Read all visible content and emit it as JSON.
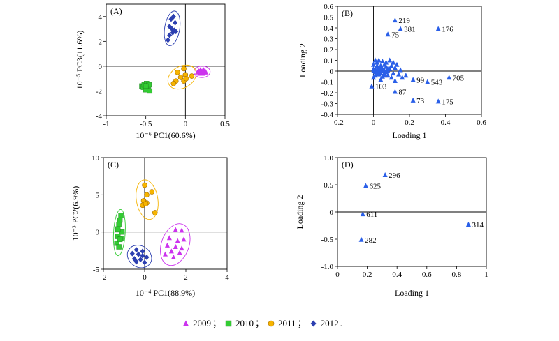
{
  "legend": {
    "entries": [
      {
        "label": "2009",
        "color": "#cc33ee",
        "marker": "triangle"
      },
      {
        "label": "2010",
        "color": "#33cc33",
        "marker": "square"
      },
      {
        "label": "2011",
        "color": "#f6b400",
        "marker": "circle"
      },
      {
        "label": "2012",
        "color": "#2c3fb0",
        "marker": "diamond"
      }
    ],
    "separator": "；",
    "terminator": "."
  },
  "chart_data": [
    {
      "panel": "(A)",
      "type": "scatter",
      "xlabel": "10⁻⁶ PC1(60.6%)",
      "ylabel": "10⁻⁵ PC3(11.6%)",
      "xlim": [
        -1,
        0.5
      ],
      "ylim": [
        -4,
        5
      ],
      "xticks": [
        -1,
        -0.5,
        0,
        0.5
      ],
      "yticks": [
        -4,
        -2,
        0,
        2,
        4
      ],
      "grid": "zero-lines",
      "series": [
        {
          "name": "2009",
          "ellipse": true,
          "points": [
            [
              0.15,
              -0.5
            ],
            [
              0.17,
              -0.4
            ],
            [
              0.18,
              -0.6
            ],
            [
              0.19,
              -0.3
            ],
            [
              0.2,
              -0.5
            ],
            [
              0.21,
              -0.4
            ],
            [
              0.22,
              -0.6
            ],
            [
              0.23,
              -0.3
            ],
            [
              0.24,
              -0.5
            ],
            [
              0.25,
              -0.4
            ],
            [
              0.26,
              -0.5
            ],
            [
              0.22,
              -0.45
            ]
          ]
        },
        {
          "name": "2010",
          "ellipse": false,
          "points": [
            [
              -0.55,
              -1.6
            ],
            [
              -0.53,
              -1.7
            ],
            [
              -0.52,
              -1.5
            ],
            [
              -0.5,
              -1.9
            ],
            [
              -0.49,
              -1.4
            ],
            [
              -0.48,
              -1.8
            ],
            [
              -0.47,
              -1.6
            ],
            [
              -0.45,
              -2.0
            ],
            [
              -0.46,
              -1.5
            ],
            [
              -0.5,
              -1.6
            ]
          ]
        },
        {
          "name": "2011",
          "ellipse": true,
          "points": [
            [
              -0.02,
              -0.2
            ],
            [
              -0.1,
              -0.5
            ],
            [
              0.0,
              -0.7
            ],
            [
              -0.12,
              -1.2
            ],
            [
              -0.02,
              -1.2
            ],
            [
              -0.15,
              -1.4
            ],
            [
              0.08,
              -0.8
            ],
            [
              -0.06,
              -0.9
            ],
            [
              0.01,
              -1.0
            ]
          ]
        },
        {
          "name": "2012",
          "ellipse": true,
          "points": [
            [
              -0.15,
              4.0
            ],
            [
              -0.18,
              3.8
            ],
            [
              -0.13,
              3.5
            ],
            [
              -0.2,
              3.2
            ],
            [
              -0.17,
              3.0
            ],
            [
              -0.14,
              2.9
            ],
            [
              -0.2,
              2.5
            ],
            [
              -0.16,
              2.7
            ],
            [
              -0.22,
              2.1
            ],
            [
              -0.12,
              2.8
            ]
          ]
        }
      ]
    },
    {
      "panel": "(B)",
      "type": "scatter",
      "xlabel": "Loading 1",
      "ylabel": "Loading 2",
      "xlim": [
        -0.2,
        0.6
      ],
      "ylim": [
        -0.4,
        0.6
      ],
      "xticks": [
        -0.2,
        0,
        0.2,
        0.4,
        0.6
      ],
      "yticks": [
        -0.4,
        -0.3,
        -0.2,
        -0.1,
        0,
        0.1,
        0.2,
        0.3,
        0.4,
        0.5,
        0.6
      ],
      "grid": "zero-lines",
      "labeled_points": [
        {
          "label": "219",
          "x": 0.12,
          "y": 0.47
        },
        {
          "label": "381",
          "x": 0.15,
          "y": 0.39
        },
        {
          "label": "75",
          "x": 0.08,
          "y": 0.34
        },
        {
          "label": "176",
          "x": 0.36,
          "y": 0.39
        },
        {
          "label": "99",
          "x": 0.22,
          "y": -0.08
        },
        {
          "label": "543",
          "x": 0.3,
          "y": -0.1
        },
        {
          "label": "705",
          "x": 0.42,
          "y": -0.06
        },
        {
          "label": "103",
          "x": -0.01,
          "y": -0.14
        },
        {
          "label": "87",
          "x": 0.12,
          "y": -0.19
        },
        {
          "label": "73",
          "x": 0.22,
          "y": -0.27
        },
        {
          "label": "175",
          "x": 0.36,
          "y": -0.28
        }
      ],
      "cluster_points": [
        [
          0.0,
          0.0
        ],
        [
          0.01,
          0.02
        ],
        [
          0.02,
          -0.01
        ],
        [
          0.03,
          0.03
        ],
        [
          0.04,
          0.0
        ],
        [
          0.05,
          0.02
        ],
        [
          0.06,
          -0.02
        ],
        [
          0.02,
          0.05
        ],
        [
          0.01,
          -0.04
        ],
        [
          0.03,
          -0.03
        ],
        [
          0.0,
          0.06
        ],
        [
          0.04,
          0.05
        ],
        [
          0.07,
          0.04
        ],
        [
          0.08,
          0.0
        ],
        [
          0.06,
          0.06
        ],
        [
          0.09,
          0.02
        ],
        [
          0.05,
          -0.05
        ],
        [
          0.02,
          0.08
        ],
        [
          0.0,
          -0.06
        ],
        [
          0.08,
          -0.04
        ],
        [
          0.1,
          0.05
        ],
        [
          0.03,
          0.1
        ],
        [
          0.07,
          0.08
        ],
        [
          0.11,
          -0.02
        ],
        [
          0.12,
          0.03
        ],
        [
          0.09,
          0.1
        ],
        [
          0.13,
          0.06
        ],
        [
          0.05,
          0.09
        ],
        [
          0.01,
          0.1
        ],
        [
          0.04,
          -0.08
        ],
        [
          0.1,
          -0.06
        ],
        [
          0.14,
          -0.03
        ],
        [
          0.15,
          0.01
        ],
        [
          0.16,
          -0.06
        ],
        [
          0.12,
          -0.09
        ],
        [
          0.18,
          -0.04
        ],
        [
          0.02,
          0.01
        ],
        [
          0.03,
          0.01
        ],
        [
          0.04,
          0.02
        ],
        [
          0.05,
          0.0
        ],
        [
          0.01,
          -0.01
        ],
        [
          0.06,
          0.01
        ],
        [
          0.02,
          -0.02
        ],
        [
          0.07,
          -0.01
        ],
        [
          0.0,
          0.02
        ],
        [
          0.03,
          -0.01
        ],
        [
          0.04,
          -0.02
        ],
        [
          0.08,
          0.02
        ],
        [
          0.06,
          -0.04
        ],
        [
          0.11,
          0.08
        ]
      ]
    },
    {
      "panel": "(C)",
      "type": "scatter",
      "xlabel": "10⁻⁴ PC1(88.9%)",
      "ylabel": "10⁻³ PC2(6.9%)",
      "xlim": [
        -2,
        4
      ],
      "ylim": [
        -5,
        10
      ],
      "xticks": [
        -2,
        0,
        2,
        4
      ],
      "yticks": [
        -5,
        0,
        5,
        10
      ],
      "grid": "zero-lines",
      "series": [
        {
          "name": "2009",
          "ellipse": true,
          "points": [
            [
              1.5,
              0.3
            ],
            [
              1.8,
              0.2
            ],
            [
              1.2,
              -0.8
            ],
            [
              1.6,
              -1.2
            ],
            [
              1.9,
              -1.0
            ],
            [
              1.1,
              -1.8
            ],
            [
              1.5,
              -2.0
            ],
            [
              1.8,
              -2.2
            ],
            [
              1.3,
              -2.6
            ],
            [
              1.7,
              -2.8
            ],
            [
              1.0,
              -3.0
            ],
            [
              1.4,
              -3.4
            ]
          ]
        },
        {
          "name": "2010",
          "ellipse": true,
          "points": [
            [
              -1.15,
              2.2
            ],
            [
              -1.2,
              1.6
            ],
            [
              -1.25,
              1.0
            ],
            [
              -1.1,
              0.0
            ],
            [
              -1.3,
              -0.6
            ],
            [
              -1.15,
              -0.9
            ],
            [
              -1.35,
              -1.5
            ],
            [
              -1.25,
              -2.0
            ],
            [
              -1.2,
              -1.0
            ],
            [
              -1.3,
              0.4
            ]
          ]
        },
        {
          "name": "2011",
          "ellipse": true,
          "points": [
            [
              0.0,
              6.3
            ],
            [
              0.35,
              5.4
            ],
            [
              0.1,
              5.0
            ],
            [
              -0.05,
              4.2
            ],
            [
              0.1,
              3.9
            ],
            [
              -0.1,
              3.6
            ],
            [
              0.05,
              3.8
            ],
            [
              0.5,
              2.6
            ]
          ]
        },
        {
          "name": "2012",
          "ellipse": true,
          "points": [
            [
              -0.4,
              -2.4
            ],
            [
              -0.1,
              -2.6
            ],
            [
              -0.6,
              -2.9
            ],
            [
              -0.3,
              -3.0
            ],
            [
              -0.1,
              -3.2
            ],
            [
              0.1,
              -3.4
            ],
            [
              -0.5,
              -3.6
            ],
            [
              -0.2,
              -3.7
            ],
            [
              -0.4,
              -4.0
            ],
            [
              0.0,
              -4.1
            ]
          ]
        }
      ]
    },
    {
      "panel": "(D)",
      "type": "scatter",
      "xlabel": "Loading 1",
      "ylabel": "Loading 2",
      "xlim": [
        0,
        1
      ],
      "ylim": [
        -1,
        1
      ],
      "xticks": [
        0,
        0.2,
        0.4,
        0.6,
        0.8,
        1
      ],
      "yticks": [
        -1.0,
        -0.5,
        0,
        0.5,
        1.0
      ],
      "grid": "zero-lines",
      "labeled_points": [
        {
          "label": "296",
          "x": 0.32,
          "y": 0.68
        },
        {
          "label": "625",
          "x": 0.19,
          "y": 0.48
        },
        {
          "label": "611",
          "x": 0.17,
          "y": -0.04
        },
        {
          "label": "314",
          "x": 0.88,
          "y": -0.23
        },
        {
          "label": "282",
          "x": 0.16,
          "y": -0.51
        }
      ]
    }
  ]
}
